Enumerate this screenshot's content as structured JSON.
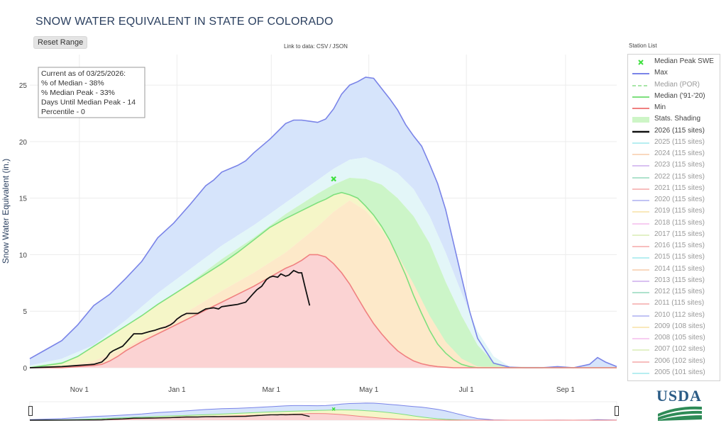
{
  "title": "SNOW WATER EQUIVALENT IN STATE OF COLORADO",
  "reset_label": "Reset Range",
  "link": {
    "prefix": "Link to data:",
    "csv": "CSV",
    "sep": "/",
    "json": "JSON"
  },
  "info_box": [
    "Current as of 03/25/2026:",
    "% of Median - 38%",
    "% Median Peak - 33%",
    "Days Until Median Peak - 14",
    "Percentile - 0"
  ],
  "legend_title": "Station List",
  "legend": [
    {
      "label": "Median Peak SWE",
      "type": "marker",
      "color": "#3ee03e",
      "dim": false
    },
    {
      "label": "Max",
      "type": "line",
      "color": "#7a84e8",
      "dim": false
    },
    {
      "label": "Median (POR)",
      "type": "dash",
      "color": "#a8e6a8",
      "dim": true
    },
    {
      "label": "Median ('91-'20)",
      "type": "line",
      "color": "#7ee07e",
      "dim": false
    },
    {
      "label": "Min",
      "type": "line",
      "color": "#f08080",
      "dim": false
    },
    {
      "label": "Stats. Shading",
      "type": "fill",
      "color": "#cdf5c6",
      "dim": false
    },
    {
      "label": "2026 (115 sites)",
      "type": "bold",
      "color": "#111111",
      "dim": false
    },
    {
      "label": "2025 (115 sites)",
      "type": "line",
      "color": "#9ae8ec",
      "dim": true
    },
    {
      "label": "2024 (115 sites)",
      "type": "line",
      "color": "#f7c9a5",
      "dim": true
    },
    {
      "label": "2023 (115 sites)",
      "type": "line",
      "color": "#c9a8ec",
      "dim": true
    },
    {
      "label": "2022 (115 sites)",
      "type": "line",
      "color": "#8ed6b8",
      "dim": true
    },
    {
      "label": "2021 (115 sites)",
      "type": "line",
      "color": "#f5a3a3",
      "dim": true
    },
    {
      "label": "2020 (115 sites)",
      "type": "line",
      "color": "#a8abf0",
      "dim": true
    },
    {
      "label": "2019 (115 sites)",
      "type": "line",
      "color": "#f7e1a0",
      "dim": true
    },
    {
      "label": "2018 (115 sites)",
      "type": "line",
      "color": "#f5b8ec",
      "dim": true
    },
    {
      "label": "2017 (115 sites)",
      "type": "line",
      "color": "#d6ecb0",
      "dim": true
    },
    {
      "label": "2016 (115 sites)",
      "type": "line",
      "color": "#f5a3a3",
      "dim": true
    },
    {
      "label": "2015 (115 sites)",
      "type": "line",
      "color": "#9ae8ec",
      "dim": true
    },
    {
      "label": "2014 (115 sites)",
      "type": "line",
      "color": "#f7c9a5",
      "dim": true
    },
    {
      "label": "2013 (115 sites)",
      "type": "line",
      "color": "#c9a8ec",
      "dim": true
    },
    {
      "label": "2012 (115 sites)",
      "type": "line",
      "color": "#8ed6b8",
      "dim": true
    },
    {
      "label": "2011 (115 sites)",
      "type": "line",
      "color": "#f5a3a3",
      "dim": true
    },
    {
      "label": "2010 (112 sites)",
      "type": "line",
      "color": "#a8abf0",
      "dim": true
    },
    {
      "label": "2009 (108 sites)",
      "type": "line",
      "color": "#f7e1a0",
      "dim": true
    },
    {
      "label": "2008 (105 sites)",
      "type": "line",
      "color": "#f5b8ec",
      "dim": true
    },
    {
      "label": "2007 (102 sites)",
      "type": "line",
      "color": "#d6ecb0",
      "dim": true
    },
    {
      "label": "2006 (102 sites)",
      "type": "line",
      "color": "#f5a3a3",
      "dim": true
    },
    {
      "label": "2005 (101 sites)",
      "type": "line",
      "color": "#9ae8ec",
      "dim": true
    }
  ],
  "logo_text": "USDA",
  "chart_data": {
    "type": "area",
    "title": "SNOW WATER EQUIVALENT IN STATE OF COLORADO",
    "xlabel": "",
    "ylabel": "Snow Water Equivalent (in.)",
    "x_ticks": [
      "Nov 1",
      "Jan 1",
      "Mar 1",
      "May 1",
      "Jul 1",
      "Sep 1"
    ],
    "x_tick_days": [
      31,
      92,
      151,
      212,
      273,
      335
    ],
    "x_range_days": [
      0,
      367
    ],
    "y_ticks": [
      0,
      5,
      10,
      15,
      20,
      25
    ],
    "ylim": [
      0,
      27.7
    ],
    "grid": true,
    "legend_position": "right",
    "x_unit": "days since Oct 1",
    "max": {
      "x": [
        0,
        10,
        20,
        30,
        40,
        50,
        60,
        70,
        80,
        90,
        100,
        110,
        115,
        120,
        130,
        135,
        140,
        150,
        155,
        160,
        165,
        170,
        175,
        180,
        185,
        190,
        195,
        200,
        205,
        210,
        215,
        220,
        225,
        230,
        235,
        240,
        245,
        250,
        255,
        260,
        265,
        270,
        275,
        280,
        290,
        300,
        310,
        320,
        330,
        340,
        350,
        355,
        360,
        367
      ],
      "y": [
        0.8,
        1.6,
        2.4,
        3.8,
        5.5,
        6.5,
        7.9,
        9.4,
        11.5,
        12.8,
        14.4,
        16.1,
        16.6,
        17.3,
        17.9,
        18.3,
        19.0,
        20.2,
        20.9,
        21.6,
        21.9,
        21.9,
        21.8,
        21.7,
        22.0,
        22.9,
        24.2,
        25.0,
        25.3,
        25.7,
        25.6,
        24.7,
        23.8,
        22.8,
        21.5,
        20.5,
        19.6,
        18.0,
        16.3,
        14.0,
        11.0,
        8.0,
        5.0,
        2.6,
        0.4,
        0.05,
        0.0,
        0.0,
        0.1,
        0.0,
        0.3,
        0.9,
        0.5,
        0.1
      ]
    },
    "upper_shade": {
      "x": [
        0,
        20,
        40,
        60,
        80,
        100,
        120,
        140,
        160,
        180,
        190,
        200,
        210,
        220,
        230,
        240,
        250,
        260,
        270,
        280,
        290,
        300,
        367
      ],
      "y": [
        0.2,
        0.8,
        2.0,
        4.2,
        6.6,
        8.7,
        10.8,
        12.6,
        14.6,
        16.6,
        17.6,
        18.4,
        18.6,
        18.0,
        17.2,
        15.8,
        13.4,
        10.2,
        6.6,
        3.2,
        1.0,
        0.1,
        0.0
      ]
    },
    "mid_shade": {
      "x": [
        0,
        20,
        40,
        60,
        80,
        100,
        120,
        140,
        160,
        180,
        190,
        200,
        210,
        220,
        230,
        240,
        250,
        260,
        270,
        280,
        290,
        300,
        367
      ],
      "y": [
        0.1,
        0.5,
        1.5,
        3.5,
        5.6,
        7.5,
        9.6,
        11.5,
        13.6,
        15.4,
        16.2,
        16.8,
        16.7,
        16.2,
        15.0,
        13.4,
        11.0,
        7.6,
        4.6,
        2.0,
        0.5,
        0.05,
        0.0
      ]
    },
    "median": {
      "x": [
        0,
        10,
        20,
        30,
        40,
        50,
        60,
        70,
        80,
        90,
        100,
        110,
        120,
        130,
        140,
        150,
        160,
        170,
        180,
        185,
        190,
        195,
        200,
        205,
        210,
        215,
        220,
        225,
        230,
        235,
        240,
        245,
        250,
        255,
        260,
        265,
        270,
        275,
        280,
        285,
        290,
        300,
        367
      ],
      "y": [
        0.0,
        0.2,
        0.4,
        1.0,
        1.9,
        2.8,
        3.7,
        4.6,
        5.6,
        6.5,
        7.4,
        8.3,
        9.2,
        10.2,
        11.3,
        12.4,
        13.2,
        13.9,
        14.6,
        14.9,
        15.3,
        15.5,
        15.3,
        15.0,
        14.3,
        13.5,
        12.5,
        11.3,
        9.8,
        8.2,
        6.4,
        4.8,
        3.3,
        2.1,
        1.3,
        0.7,
        0.3,
        0.1,
        0.0,
        0.0,
        0.0,
        0.0,
        0.0
      ]
    },
    "lower_shade": {
      "x": [
        0,
        20,
        40,
        60,
        80,
        100,
        120,
        140,
        160,
        180,
        190,
        200,
        210,
        220,
        230,
        240,
        250,
        260,
        270,
        280,
        367
      ],
      "y": [
        0.0,
        0.1,
        0.6,
        1.8,
        3.4,
        5.1,
        6.8,
        8.4,
        10.2,
        12.5,
        13.8,
        14.8,
        13.9,
        12.2,
        10.0,
        7.4,
        4.6,
        2.3,
        0.8,
        0.1,
        0.0
      ]
    },
    "min": {
      "x": [
        0,
        10,
        20,
        30,
        40,
        45,
        50,
        55,
        60,
        70,
        80,
        90,
        100,
        110,
        120,
        130,
        140,
        150,
        160,
        165,
        170,
        175,
        180,
        185,
        190,
        195,
        200,
        205,
        210,
        215,
        220,
        225,
        230,
        235,
        240,
        245,
        250,
        255,
        260,
        265,
        270,
        367
      ],
      "y": [
        0.0,
        0.0,
        0.0,
        0.1,
        0.2,
        0.3,
        0.6,
        1.0,
        1.5,
        2.3,
        3.0,
        3.7,
        4.4,
        5.1,
        5.8,
        6.5,
        7.2,
        8.0,
        8.8,
        9.1,
        9.5,
        10.0,
        10.0,
        9.8,
        9.2,
        8.4,
        7.4,
        6.2,
        5.0,
        3.9,
        3.0,
        2.2,
        1.5,
        1.0,
        0.6,
        0.35,
        0.2,
        0.1,
        0.05,
        0.0,
        0.0,
        0.0
      ]
    },
    "current_2026": {
      "x": [
        0,
        10,
        20,
        30,
        40,
        45,
        48,
        50,
        52,
        55,
        58,
        60,
        65,
        70,
        75,
        78,
        80,
        82,
        85,
        88,
        90,
        92,
        95,
        98,
        100,
        105,
        110,
        115,
        118,
        120,
        125,
        130,
        135,
        140,
        142,
        145,
        148,
        150,
        152,
        155,
        157,
        160,
        162,
        165,
        168,
        170,
        172,
        175
      ],
      "y": [
        0.0,
        0.05,
        0.1,
        0.2,
        0.3,
        0.5,
        0.9,
        1.3,
        1.5,
        1.7,
        1.9,
        2.2,
        3.0,
        3.0,
        3.2,
        3.3,
        3.4,
        3.5,
        3.6,
        3.8,
        4.0,
        4.3,
        4.6,
        4.8,
        4.8,
        4.8,
        5.2,
        5.3,
        5.2,
        5.4,
        5.5,
        5.6,
        5.8,
        6.6,
        6.9,
        7.2,
        7.8,
        8.0,
        8.1,
        8.0,
        8.3,
        8.1,
        8.2,
        8.6,
        8.4,
        8.4,
        7.2,
        5.5
      ]
    },
    "median_peak": {
      "x": 190,
      "y": 16.7
    }
  }
}
